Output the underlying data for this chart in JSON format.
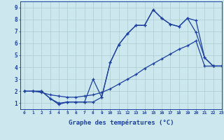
{
  "xlabel": "Graphe des températures (°C)",
  "background_color": "#cce8ee",
  "grid_color": "#aacccc",
  "line_color": "#1c3fa0",
  "xlim": [
    -0.5,
    23
  ],
  "ylim": [
    0.5,
    9.5
  ],
  "xticks": [
    0,
    1,
    2,
    3,
    4,
    5,
    6,
    7,
    8,
    9,
    10,
    11,
    12,
    13,
    14,
    15,
    16,
    17,
    18,
    19,
    20,
    21,
    22,
    23
  ],
  "yticks": [
    1,
    2,
    3,
    4,
    5,
    6,
    7,
    8,
    9
  ],
  "line1_x": [
    0,
    1,
    2,
    3,
    4,
    5,
    6,
    7,
    8,
    9,
    10,
    11,
    12,
    13,
    14,
    15,
    16,
    17,
    18,
    19,
    20,
    21,
    22,
    23
  ],
  "line1_y": [
    2.0,
    2.0,
    2.0,
    1.4,
    1.0,
    1.1,
    1.1,
    1.1,
    1.1,
    1.5,
    4.4,
    5.9,
    6.8,
    7.5,
    7.5,
    8.8,
    8.1,
    7.6,
    7.4,
    8.1,
    7.9,
    4.8,
    4.1,
    4.1
  ],
  "line2_x": [
    0,
    1,
    2,
    3,
    4,
    5,
    6,
    7,
    8,
    9,
    10,
    11,
    12,
    13,
    14,
    15,
    16,
    17,
    18,
    19,
    20,
    21,
    22,
    23
  ],
  "line2_y": [
    2.0,
    2.0,
    2.0,
    1.4,
    0.9,
    1.1,
    1.1,
    1.1,
    3.0,
    1.5,
    4.4,
    5.9,
    6.8,
    7.5,
    7.5,
    8.8,
    8.1,
    7.6,
    7.4,
    8.1,
    6.9,
    4.8,
    4.1,
    4.1
  ],
  "line3_x": [
    0,
    1,
    2,
    3,
    4,
    5,
    6,
    7,
    8,
    9,
    10,
    11,
    12,
    13,
    14,
    15,
    16,
    17,
    18,
    19,
    20,
    21,
    22,
    23
  ],
  "line3_y": [
    2.0,
    2.0,
    1.9,
    1.7,
    1.6,
    1.5,
    1.5,
    1.6,
    1.7,
    1.9,
    2.2,
    2.6,
    3.0,
    3.4,
    3.9,
    4.3,
    4.7,
    5.1,
    5.5,
    5.8,
    6.2,
    4.1,
    4.1,
    4.1
  ]
}
